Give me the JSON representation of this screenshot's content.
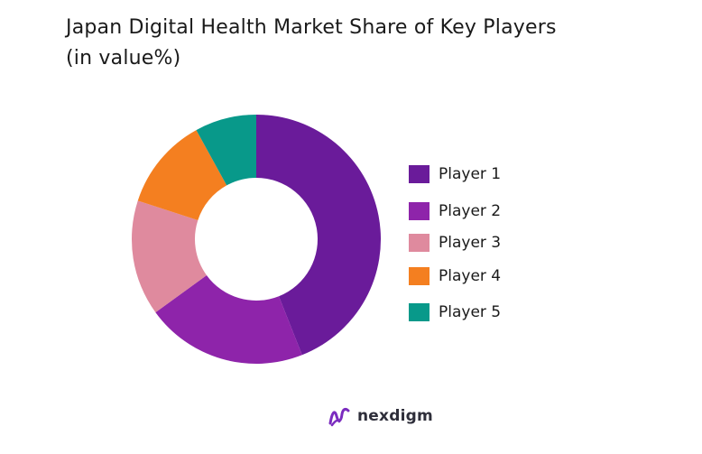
{
  "chart_data": {
    "type": "pie",
    "variant": "donut",
    "title_line1": "Japan Digital Health Market Share of Key Players",
    "title_line2": "(in value%)",
    "categories": [
      "Player 1",
      "Player 2",
      "Player 3",
      "Player 4",
      "Player 5"
    ],
    "values": [
      44,
      21,
      15,
      12,
      8
    ],
    "colors": [
      "#6a1b9a",
      "#8e24aa",
      "#df8a9e",
      "#f47f20",
      "#08998a"
    ],
    "legend_position": "right"
  },
  "brand": {
    "name": "nexdigm",
    "icon": "nexdigm-logo-icon",
    "color": "#7b2cbf"
  }
}
